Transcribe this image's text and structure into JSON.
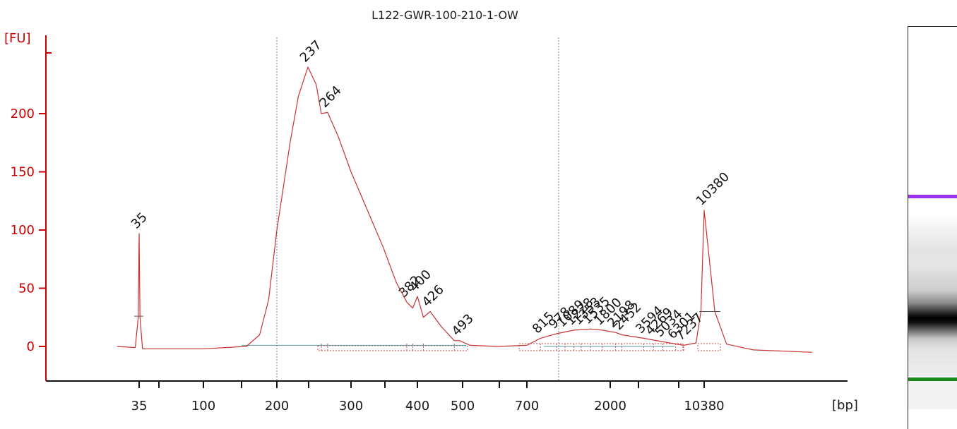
{
  "chart_data": {
    "type": "line",
    "title": "L122-GWR-100-210-1-OW",
    "ylabel": "[FU]",
    "xlabel": "[bp]",
    "y_ticks": [
      0,
      50,
      100,
      150,
      200
    ],
    "ylim": [
      -30,
      270
    ],
    "x_scale": "ladder (non-linear)",
    "x_ticks": [
      35,
      100,
      200,
      300,
      400,
      500,
      700,
      2000,
      10380
    ],
    "x_tick_labels": [
      "35",
      "100",
      "200",
      "300",
      "400",
      "500",
      "700",
      "2000",
      "10380"
    ],
    "grid": false,
    "reference_lines_bp": [
      200,
      1000
    ],
    "marker_peaks": [
      {
        "label": "35",
        "bp": 35,
        "fu": 97,
        "color": "#1a8a1a"
      },
      {
        "label": "10380",
        "bp": 10380,
        "fu": 117,
        "color": "#9933ee"
      }
    ],
    "peak_labels": [
      "237",
      "264",
      "382",
      "400",
      "426",
      "493",
      "815",
      "978",
      "1089",
      "1228",
      "1353",
      "1535",
      "1800",
      "2198",
      "2452",
      "3594",
      "4269",
      "5034",
      "6301",
      "7237"
    ],
    "series": [
      {
        "color": "#c83232",
        "points": [
          {
            "bp": 25,
            "fu": 0
          },
          {
            "bp": 33,
            "fu": -1
          },
          {
            "bp": 34.5,
            "fu": 25
          },
          {
            "bp": 35,
            "fu": 97
          },
          {
            "bp": 35.5,
            "fu": 25
          },
          {
            "bp": 37,
            "fu": -2
          },
          {
            "bp": 100,
            "fu": -2
          },
          {
            "bp": 150,
            "fu": 0
          },
          {
            "bp": 170,
            "fu": 10
          },
          {
            "bp": 185,
            "fu": 40
          },
          {
            "bp": 200,
            "fu": 100
          },
          {
            "bp": 215,
            "fu": 175
          },
          {
            "bp": 225,
            "fu": 215
          },
          {
            "bp": 237,
            "fu": 240
          },
          {
            "bp": 248,
            "fu": 225
          },
          {
            "bp": 255,
            "fu": 200
          },
          {
            "bp": 264,
            "fu": 201
          },
          {
            "bp": 280,
            "fu": 180
          },
          {
            "bp": 300,
            "fu": 150
          },
          {
            "bp": 320,
            "fu": 120
          },
          {
            "bp": 345,
            "fu": 85
          },
          {
            "bp": 365,
            "fu": 55
          },
          {
            "bp": 382,
            "fu": 38
          },
          {
            "bp": 392,
            "fu": 33
          },
          {
            "bp": 400,
            "fu": 43
          },
          {
            "bp": 412,
            "fu": 25
          },
          {
            "bp": 426,
            "fu": 30
          },
          {
            "bp": 450,
            "fu": 17
          },
          {
            "bp": 480,
            "fu": 5
          },
          {
            "bp": 493,
            "fu": 5
          },
          {
            "bp": 520,
            "fu": 1
          },
          {
            "bp": 600,
            "fu": 0
          },
          {
            "bp": 700,
            "fu": 1
          },
          {
            "bp": 815,
            "fu": 7
          },
          {
            "bp": 978,
            "fu": 11
          },
          {
            "bp": 1228,
            "fu": 14
          },
          {
            "bp": 1535,
            "fu": 15
          },
          {
            "bp": 1800,
            "fu": 14
          },
          {
            "bp": 2198,
            "fu": 12
          },
          {
            "bp": 2452,
            "fu": 10
          },
          {
            "bp": 3594,
            "fu": 7
          },
          {
            "bp": 5034,
            "fu": 4
          },
          {
            "bp": 7237,
            "fu": 1
          },
          {
            "bp": 9000,
            "fu": 3
          },
          {
            "bp": 9800,
            "fu": 30
          },
          {
            "bp": 10380,
            "fu": 117
          },
          {
            "bp": 10900,
            "fu": 30
          },
          {
            "bp": 11500,
            "fu": 2
          },
          {
            "bp": 13000,
            "fu": -3
          },
          {
            "bp": 17000,
            "fu": -5
          }
        ]
      }
    ]
  },
  "gel": {
    "upper_marker_color": "#9933ee",
    "lower_marker_color": "#1a8a1a"
  }
}
